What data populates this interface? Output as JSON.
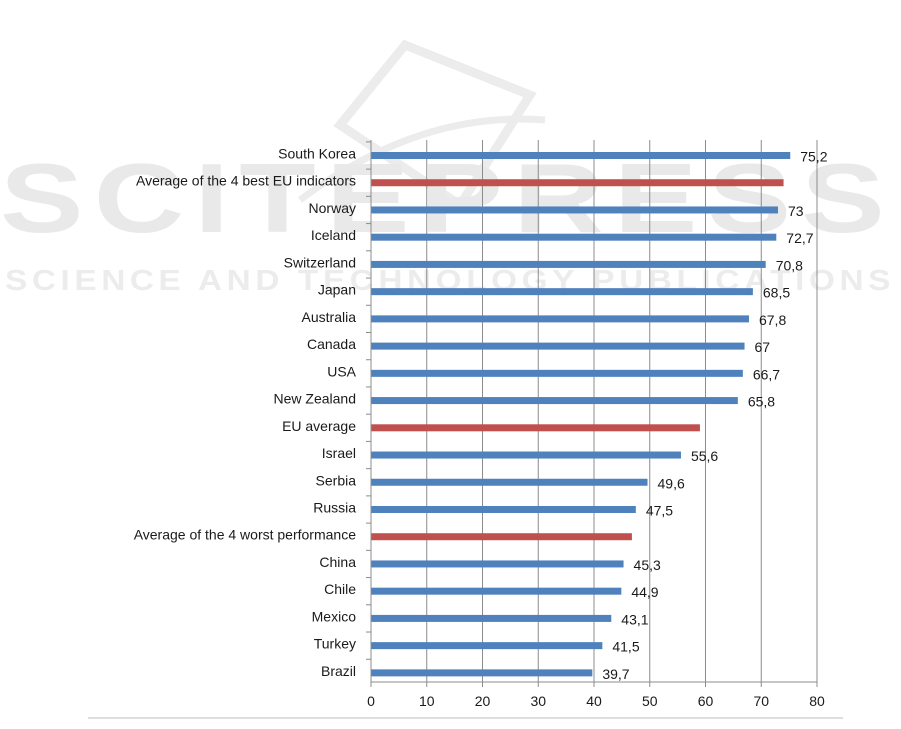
{
  "watermark": {
    "logo_text": "SCITEPRESS",
    "sub_text": "SCIENCE AND TECHNOLOGY PUBLICATIONS"
  },
  "chart_data": {
    "type": "bar",
    "orientation": "horizontal",
    "title": "",
    "xlabel": "",
    "ylabel": "",
    "xlim": [
      0,
      80
    ],
    "x_ticks": [
      0,
      10,
      20,
      30,
      40,
      50,
      60,
      70,
      80
    ],
    "grid": "vertical",
    "legend": "none",
    "colors": {
      "country": "#4f81bd",
      "average": "#c0504d"
    },
    "categories": [
      {
        "label": "South Korea",
        "value": 75.2,
        "value_label": "75,2",
        "kind": "country"
      },
      {
        "label": "Average of the 4 best EU indicators",
        "value": 74.0,
        "value_label": "",
        "kind": "average"
      },
      {
        "label": "Norway",
        "value": 73.0,
        "value_label": "73",
        "kind": "country"
      },
      {
        "label": "Iceland",
        "value": 72.7,
        "value_label": "72,7",
        "kind": "country"
      },
      {
        "label": "Switzerland",
        "value": 70.8,
        "value_label": "70,8",
        "kind": "country"
      },
      {
        "label": "Japan",
        "value": 68.5,
        "value_label": "68,5",
        "kind": "country"
      },
      {
        "label": "Australia",
        "value": 67.8,
        "value_label": "67,8",
        "kind": "country"
      },
      {
        "label": "Canada",
        "value": 67.0,
        "value_label": "67",
        "kind": "country"
      },
      {
        "label": "USA",
        "value": 66.7,
        "value_label": "66,7",
        "kind": "country"
      },
      {
        "label": "New Zealand",
        "value": 65.8,
        "value_label": "65,8",
        "kind": "country"
      },
      {
        "label": "EU average",
        "value": 59.0,
        "value_label": "",
        "kind": "average"
      },
      {
        "label": "Israel",
        "value": 55.6,
        "value_label": "55,6",
        "kind": "country"
      },
      {
        "label": "Serbia",
        "value": 49.6,
        "value_label": "49,6",
        "kind": "country"
      },
      {
        "label": "Russia",
        "value": 47.5,
        "value_label": "47,5",
        "kind": "country"
      },
      {
        "label": "Average of the 4 worst performance",
        "value": 46.8,
        "value_label": "",
        "kind": "average"
      },
      {
        "label": "China",
        "value": 45.3,
        "value_label": "45,3",
        "kind": "country"
      },
      {
        "label": "Chile",
        "value": 44.9,
        "value_label": "44,9",
        "kind": "country"
      },
      {
        "label": "Mexico",
        "value": 43.1,
        "value_label": "43,1",
        "kind": "country"
      },
      {
        "label": "Turkey",
        "value": 41.5,
        "value_label": "41,5",
        "kind": "country"
      },
      {
        "label": "Brazil",
        "value": 39.7,
        "value_label": "39,7",
        "kind": "country"
      }
    ]
  }
}
